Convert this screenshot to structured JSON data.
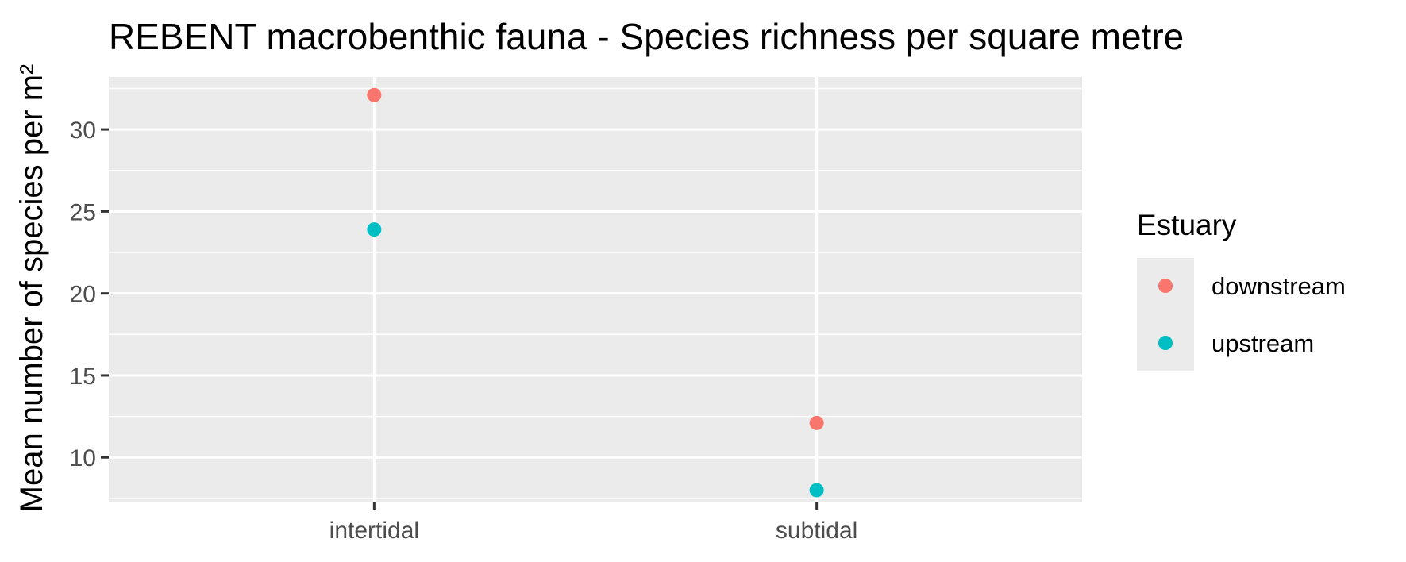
{
  "chart_data": {
    "type": "scatter",
    "title": "REBENT macrobenthic fauna - Species richness per square metre",
    "xlabel": "",
    "ylabel": "Mean number of species per m²",
    "categories": [
      "intertidal",
      "subtidal"
    ],
    "y_ticks": [
      "10",
      "15",
      "20",
      "25",
      "30"
    ],
    "ylim": [
      7.3,
      33.2
    ],
    "grid": true,
    "legend": {
      "title": "Estuary",
      "position": "right"
    },
    "series": [
      {
        "name": "downstream",
        "color": "#F8766D",
        "values": [
          32.1,
          12.1
        ]
      },
      {
        "name": "upstream",
        "color": "#00BFC4",
        "values": [
          23.9,
          8.0
        ]
      }
    ]
  }
}
